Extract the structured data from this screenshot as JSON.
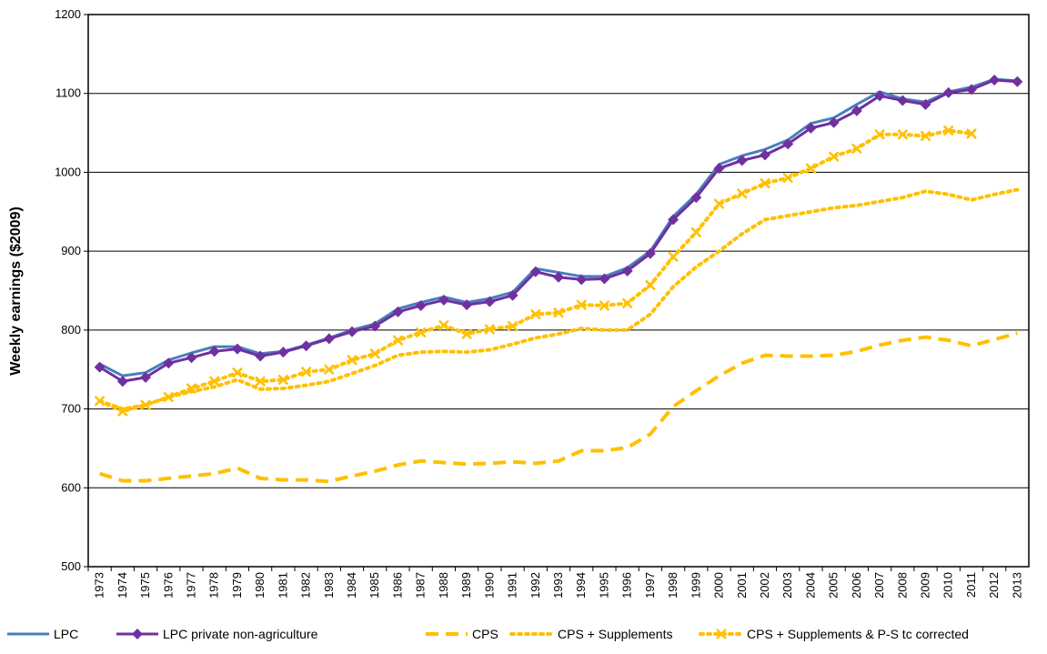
{
  "chart_data": {
    "type": "line",
    "y_label": "Weekly earnings ($2009)",
    "categories": [
      "1973",
      "1974",
      "1975",
      "1976",
      "1977",
      "1978",
      "1979",
      "1980",
      "1981",
      "1982",
      "1983",
      "1984",
      "1985",
      "1986",
      "1987",
      "1988",
      "1989",
      "1990",
      "1991",
      "1992",
      "1993",
      "1994",
      "1995",
      "1996",
      "1997",
      "1998",
      "1999",
      "2000",
      "2001",
      "2002",
      "2003",
      "2004",
      "2005",
      "2006",
      "2007",
      "2008",
      "2009",
      "2010",
      "2011",
      "2012",
      "2013"
    ],
    "ylim": [
      500,
      1200
    ],
    "yticks": [
      500,
      600,
      700,
      800,
      900,
      1000,
      1100,
      1200
    ],
    "grid": true,
    "legend": "bottom",
    "series": [
      {
        "name": "LPC",
        "color": "#4a7ebb",
        "line_style": "solid",
        "marker": "none",
        "values": [
          757,
          742,
          746,
          762,
          771,
          779,
          779,
          770,
          773,
          781,
          790,
          800,
          808,
          827,
          835,
          842,
          835,
          840,
          848,
          878,
          873,
          868,
          868,
          879,
          900,
          944,
          972,
          1010,
          1021,
          1029,
          1041,
          1062,
          1069,
          1086,
          1102,
          1093,
          1089,
          1102,
          1108,
          1118,
          1116
        ]
      },
      {
        "name": "LPC private non-agriculture",
        "color": "#7030a0",
        "line_style": "solid",
        "marker": "diamond",
        "values": [
          753,
          735,
          740,
          758,
          765,
          773,
          776,
          767,
          772,
          780,
          789,
          798,
          805,
          823,
          831,
          838,
          832,
          836,
          844,
          874,
          867,
          864,
          865,
          875,
          897,
          940,
          968,
          1005,
          1015,
          1022,
          1036,
          1056,
          1063,
          1078,
          1097,
          1091,
          1086,
          1101,
          1105,
          1117,
          1115
        ]
      },
      {
        "name": "CPS",
        "color": "#ffc000",
        "line_style": "dashed",
        "marker": "none",
        "values": [
          618,
          609,
          609,
          612,
          615,
          618,
          625,
          612,
          610,
          610,
          608,
          615,
          621,
          629,
          634,
          632,
          630,
          631,
          633,
          631,
          634,
          647,
          647,
          651,
          668,
          703,
          723,
          742,
          758,
          768,
          767,
          767,
          768,
          773,
          781,
          787,
          791,
          787,
          780,
          788,
          796
        ]
      },
      {
        "name": "CPS + Supplements",
        "color": "#ffc000",
        "line_style": "dotted",
        "marker": "none",
        "values": [
          710,
          700,
          705,
          715,
          722,
          728,
          737,
          725,
          726,
          730,
          735,
          745,
          755,
          768,
          772,
          773,
          772,
          775,
          782,
          790,
          795,
          802,
          800,
          800,
          820,
          855,
          880,
          900,
          922,
          940,
          945,
          950,
          955,
          958,
          963,
          968,
          976,
          972,
          965,
          972,
          978
        ]
      },
      {
        "name": "CPS + Supplements & P-S tc corrected",
        "color": "#ffc000",
        "line_style": "dotted",
        "marker": "x",
        "values": [
          710,
          697,
          705,
          715,
          726,
          735,
          746,
          735,
          737,
          747,
          750,
          762,
          770,
          787,
          797,
          806,
          795,
          801,
          805,
          820,
          822,
          832,
          831,
          834,
          857,
          893,
          924,
          960,
          973,
          986,
          993,
          1005,
          1020,
          1030,
          1048,
          1048,
          1046,
          1053,
          1049,
          null,
          null
        ]
      }
    ]
  }
}
